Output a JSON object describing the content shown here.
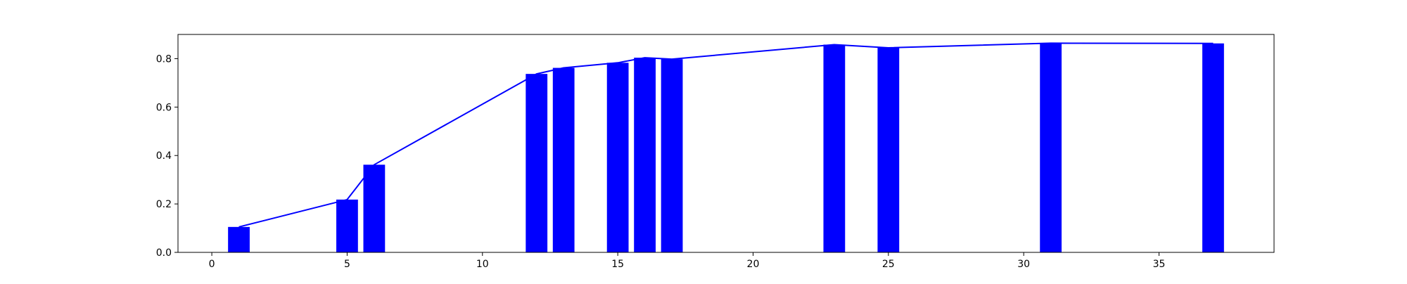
{
  "chart_data": {
    "type": "bar",
    "title": "",
    "xlabel": "",
    "ylabel": "",
    "xlim": [
      -1.25,
      39.25
    ],
    "ylim": [
      0.0,
      0.9
    ],
    "xticks": [
      0,
      5,
      10,
      15,
      20,
      25,
      30,
      35
    ],
    "yticks": [
      0.0,
      0.2,
      0.4,
      0.6,
      0.8
    ],
    "bar_width": 0.8,
    "grid": false,
    "series": [
      {
        "name": "bars",
        "kind": "bar",
        "color": "#0000ff",
        "x": [
          1,
          5,
          6,
          12,
          13,
          15,
          16,
          17,
          23,
          25,
          31,
          37
        ],
        "values": [
          0.105,
          0.218,
          0.362,
          0.737,
          0.762,
          0.783,
          0.804,
          0.798,
          0.858,
          0.845,
          0.864,
          0.863
        ]
      },
      {
        "name": "line",
        "kind": "line",
        "color": "#0000ff",
        "x": [
          1,
          5,
          6,
          12,
          13,
          15,
          16,
          17,
          23,
          25,
          31,
          37
        ],
        "values": [
          0.105,
          0.218,
          0.362,
          0.737,
          0.762,
          0.783,
          0.804,
          0.798,
          0.858,
          0.845,
          0.864,
          0.863
        ]
      }
    ]
  }
}
